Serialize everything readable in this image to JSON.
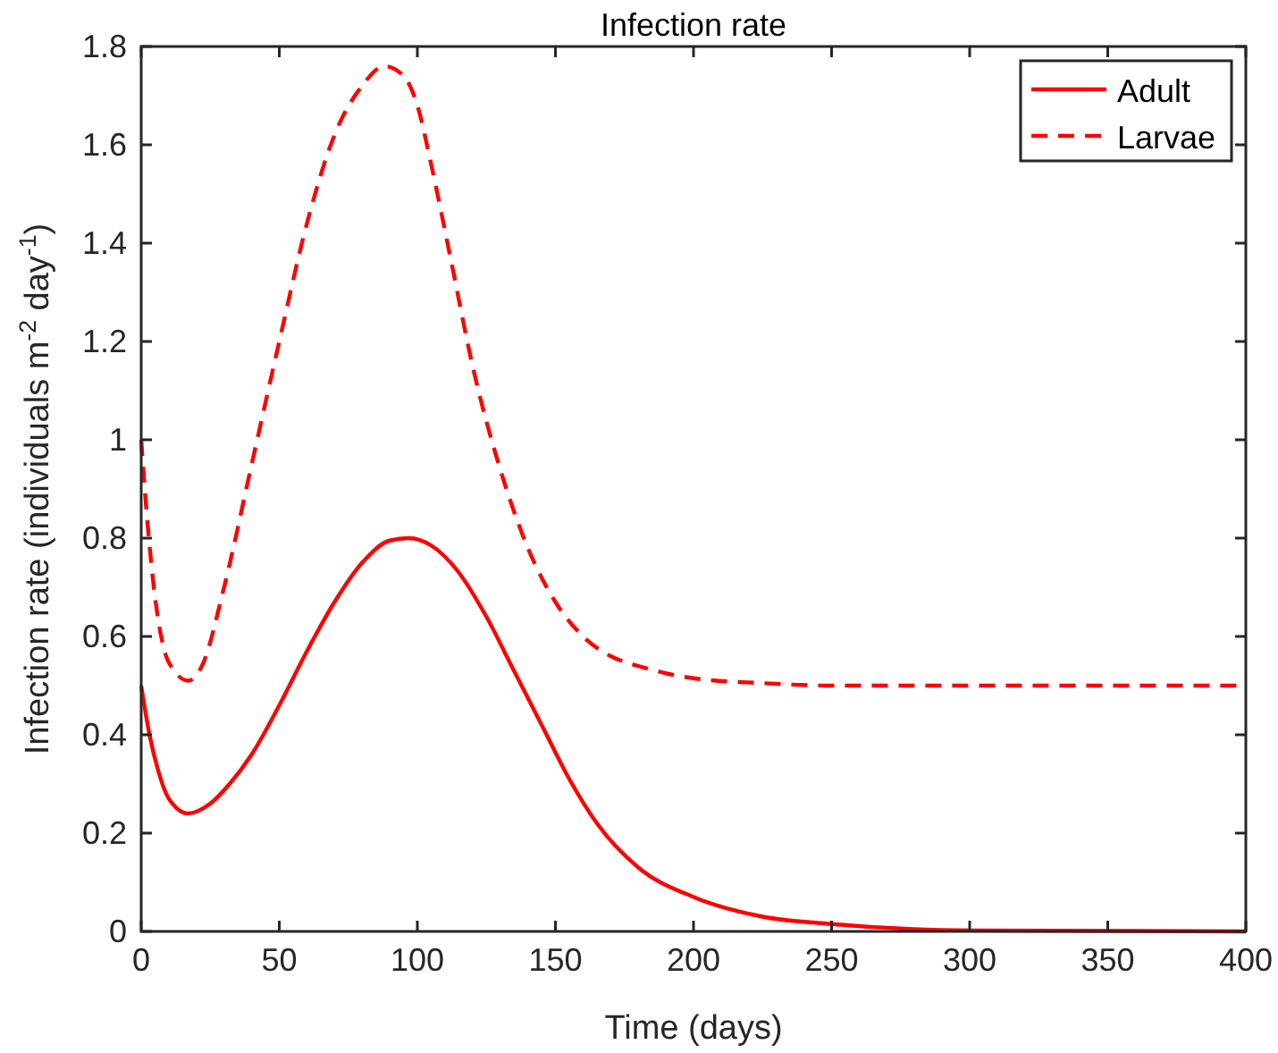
{
  "chart_data": {
    "type": "line",
    "title": "Infection rate",
    "xlabel": "Time (days)",
    "ylabel": "Infection rate (individuals m$^{-2}$ day$^{-1}$)",
    "xlim": [
      0,
      400
    ],
    "xticks": [
      0,
      50,
      100,
      150,
      200,
      250,
      300,
      350,
      400
    ],
    "ylim": [
      0,
      1.8
    ],
    "yticks": [
      0,
      0.2,
      0.4,
      0.6,
      0.8,
      1,
      1.2,
      1.4,
      1.6,
      1.8
    ],
    "grid": false,
    "legend": "top right",
    "series": [
      {
        "name": "Adult",
        "color": "#ff0000",
        "line_style": "solid",
        "x": [
          0,
          3,
          6,
          10,
          17,
          25,
          32,
          40,
          50,
          60,
          70,
          80,
          90,
          97,
          105,
          115,
          125,
          135,
          145,
          155,
          165,
          180,
          200,
          225,
          250,
          300,
          400
        ],
        "values": [
          0.5,
          0.4,
          0.33,
          0.27,
          0.24,
          0.26,
          0.3,
          0.36,
          0.46,
          0.57,
          0.67,
          0.75,
          0.795,
          0.8,
          0.785,
          0.73,
          0.64,
          0.53,
          0.42,
          0.31,
          0.22,
          0.13,
          0.07,
          0.03,
          0.015,
          0.002,
          0
        ]
      },
      {
        "name": "Larvae",
        "color": "#ff0000",
        "line_style": "dashed",
        "x": [
          0,
          2,
          5,
          8,
          12,
          17,
          22,
          30,
          40,
          50,
          60,
          70,
          80,
          88,
          95,
          100,
          105,
          112,
          120,
          130,
          140,
          150,
          160,
          170,
          180,
          190,
          200,
          225,
          250,
          300,
          400
        ],
        "values": [
          1,
          0.85,
          0.68,
          0.58,
          0.53,
          0.51,
          0.54,
          0.7,
          0.95,
          1.2,
          1.44,
          1.62,
          1.72,
          1.76,
          1.74,
          1.68,
          1.56,
          1.37,
          1.15,
          0.94,
          0.78,
          0.67,
          0.6,
          0.56,
          0.54,
          0.525,
          0.515,
          0.505,
          0.5,
          0.5,
          0.5
        ]
      }
    ]
  }
}
